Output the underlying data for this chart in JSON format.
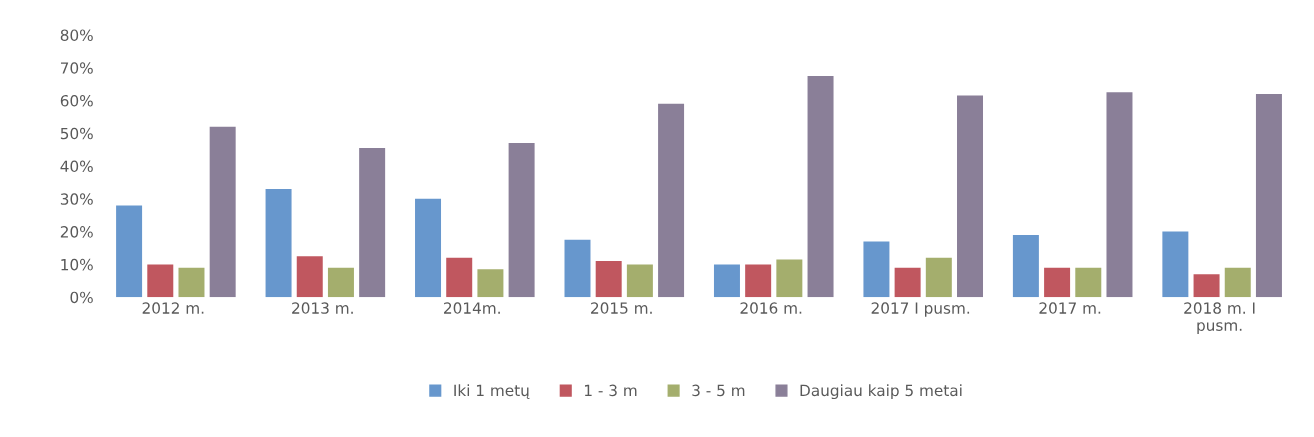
{
  "chart_data": {
    "type": "bar",
    "categories": [
      "2012 m.",
      "2013 m.",
      "2014m.",
      "2015 m.",
      "2016 m.",
      "2017 I pusm.",
      "2017 m.",
      "2018 m. I\npusm."
    ],
    "series": [
      {
        "name": "Iki 1 metų",
        "color": "#6797cd",
        "values": [
          28,
          33,
          30,
          17.5,
          10,
          17,
          19,
          20
        ]
      },
      {
        "name": "1 - 3 m",
        "color": "#c0575f",
        "values": [
          10,
          12.5,
          12,
          11,
          10,
          9,
          9,
          7
        ]
      },
      {
        "name": "3 - 5 m",
        "color": "#a4ae6d",
        "values": [
          9,
          9,
          8.5,
          10,
          11.5,
          12,
          9,
          9
        ]
      },
      {
        "name": "Daugiau kaip 5 metai",
        "color": "#8a7f98",
        "values": [
          52,
          45.5,
          47,
          59,
          67.5,
          61.5,
          62.5,
          62
        ]
      }
    ],
    "ylim": [
      0,
      80
    ],
    "yticks": [
      {
        "value": 0,
        "label": "0%"
      },
      {
        "value": 10,
        "label": "10%"
      },
      {
        "value": 20,
        "label": "20%"
      },
      {
        "value": 30,
        "label": "30%"
      },
      {
        "value": 40,
        "label": "40%"
      },
      {
        "value": 50,
        "label": "50%"
      },
      {
        "value": 60,
        "label": "60%"
      },
      {
        "value": 70,
        "label": "70%"
      },
      {
        "value": 80,
        "label": "80%"
      }
    ],
    "grid": false,
    "legend": "bottom"
  }
}
